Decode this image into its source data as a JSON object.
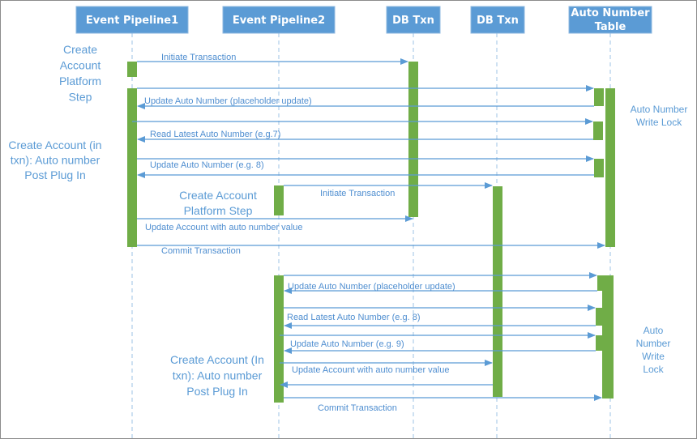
{
  "colors": {
    "header": "#5b9bd5",
    "activation": "#70ad47",
    "arrow": "#5b9bd5",
    "text": "#5b9bd5"
  },
  "participants": [
    {
      "id": "ep1",
      "lines": [
        "Event Pipeline1"
      ]
    },
    {
      "id": "ep2",
      "lines": [
        "Event Pipeline2"
      ]
    },
    {
      "id": "db1",
      "lines": [
        "DB Txn"
      ]
    },
    {
      "id": "db2",
      "lines": [
        "DB Txn"
      ]
    },
    {
      "id": "ant",
      "lines": [
        "Auto Number",
        "Table"
      ]
    }
  ],
  "messages": [
    {
      "from": "ep1",
      "to": "db1",
      "label": "Initiate Transaction"
    },
    {
      "from": "ep1",
      "to": "ant",
      "label": ""
    },
    {
      "from": "ant",
      "to": "ep1",
      "label": "Update Auto Number (placeholder update)"
    },
    {
      "from": "ep1",
      "to": "ant",
      "label": ""
    },
    {
      "from": "ant",
      "to": "ep1",
      "label": "Read Latest Auto Number (e.g.7)"
    },
    {
      "from": "ep1",
      "to": "ant",
      "label": ""
    },
    {
      "from": "ant",
      "to": "ep1",
      "label": "Update Auto Number (e.g. 8)"
    },
    {
      "from": "ep2",
      "to": "db2",
      "label": "Initiate Transaction"
    },
    {
      "from": "ep1",
      "to": "db1",
      "label": "Update Account with auto number value"
    },
    {
      "from": "ep1",
      "to": "ant",
      "label": "Commit Transaction"
    },
    {
      "from": "ep2",
      "to": "ant",
      "label": ""
    },
    {
      "from": "ant",
      "to": "ep2",
      "label": "Update Auto Number (placeholder update)"
    },
    {
      "from": "ep2",
      "to": "ant",
      "label": ""
    },
    {
      "from": "ant",
      "to": "ep2",
      "label": "Read Latest Auto Number (e.g. 8)"
    },
    {
      "from": "ep2",
      "to": "ant",
      "label": ""
    },
    {
      "from": "ant",
      "to": "ep2",
      "label": "Update Auto Number (e.g. 9)"
    },
    {
      "from": "ep2",
      "to": "db2",
      "label": "Update Account with auto number value"
    },
    {
      "from": "db2",
      "to": "ep2",
      "label": ""
    },
    {
      "from": "ep2",
      "to": "ant",
      "label": "Commit Transaction"
    }
  ],
  "notes": [
    {
      "lines": [
        "Create",
        "Account",
        "Platform",
        "Step"
      ]
    },
    {
      "lines": [
        "Create Account (in",
        "txn): Auto number",
        "Post Plug In"
      ]
    },
    {
      "lines": [
        "Create Account",
        "Platform Step"
      ]
    },
    {
      "lines": [
        "Auto Number",
        "Write Lock"
      ]
    },
    {
      "lines": [
        "Auto",
        "Number",
        "Write",
        "Lock"
      ]
    },
    {
      "lines": [
        "Create Account (In",
        "txn): Auto number",
        "Post Plug In"
      ]
    }
  ]
}
